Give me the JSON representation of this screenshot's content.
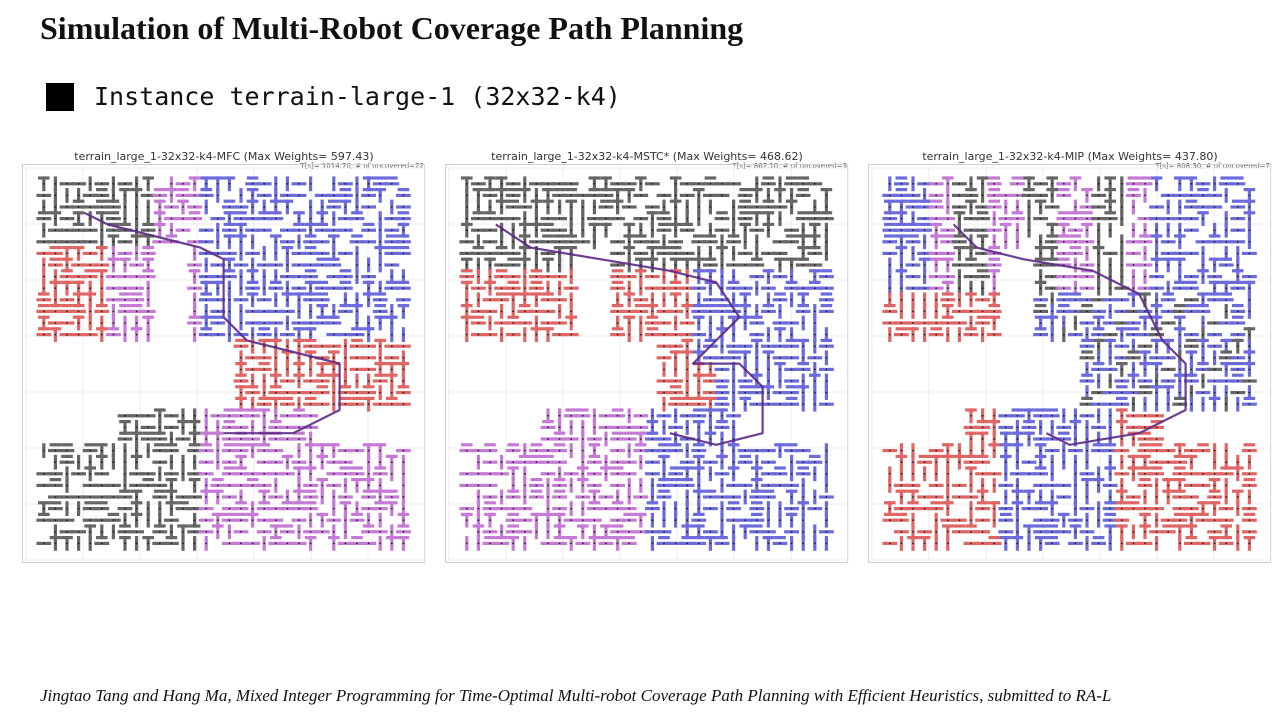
{
  "slide": {
    "title": "Simulation of Multi-Robot Coverage Path Planning",
    "instance_label": "Instance terrain-large-1 (32x32-k4)",
    "footer": "Jingtao Tang and Hang Ma, Mixed Integer Programming for Time-Optimal Multi-robot Coverage Path Planning with Efficient Heuristics, submitted to RA-L"
  },
  "colors": {
    "robot_red": "#e06666",
    "robot_purple": "#c57ad6",
    "robot_blue": "#6b6bdc",
    "robot_gray": "#666666",
    "trajectory": "#5b2a86"
  },
  "panels": [
    {
      "title": "terrain_large_1-32x32-k4-MFC (Max Weights= 597.43)",
      "stats": "T[s]= 1014.70, # of uncovered=22"
    },
    {
      "title": "terrain_large_1-32x32-k4-MSTC* (Max Weights= 468.62)",
      "stats": "T[s]= 867.10, # of uncovered=3"
    },
    {
      "title": "terrain_large_1-32x32-k4-MIP (Max Weights= 437.80)",
      "stats": "T[s]= 808.30, # of uncovered=7"
    }
  ]
}
